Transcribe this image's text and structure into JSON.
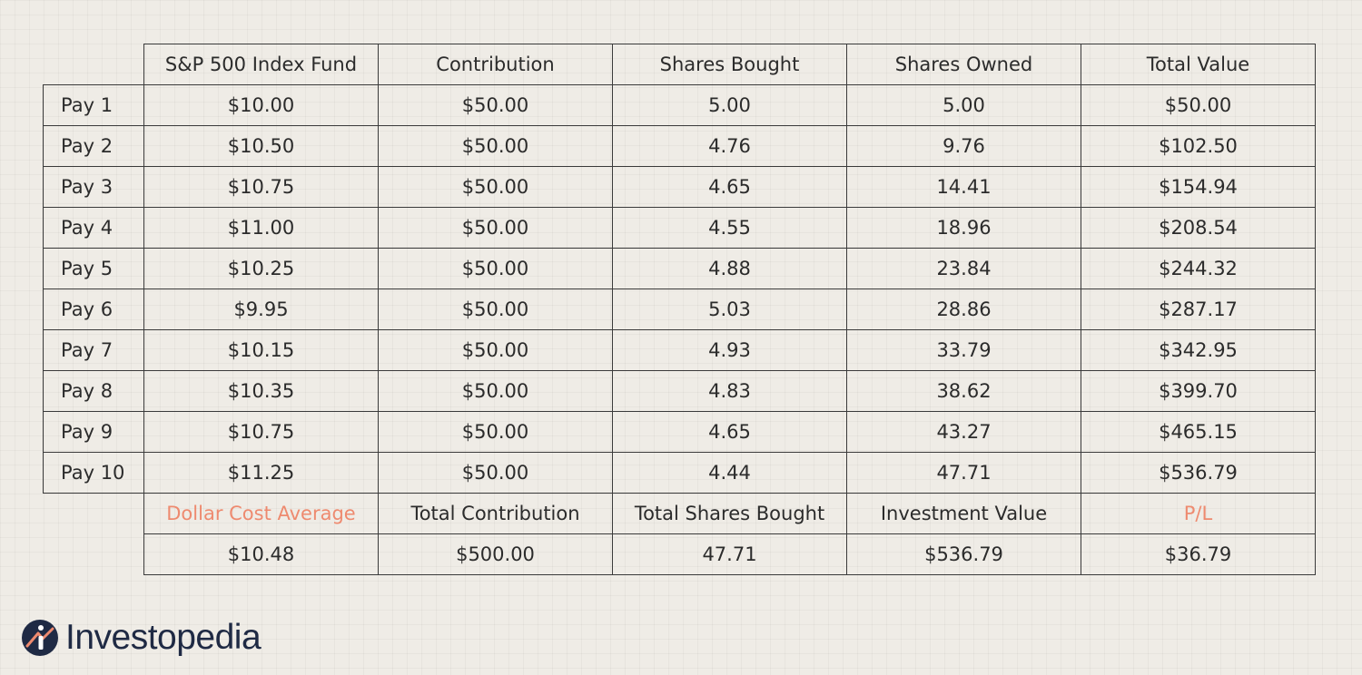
{
  "chart_data": {
    "type": "table",
    "columns": [
      "",
      "S&P 500 Index Fund",
      "Contribution",
      "Shares Bought",
      "Shares Owned",
      "Total Value"
    ],
    "rows": [
      [
        "Pay 1",
        "$10.00",
        "$50.00",
        "5.00",
        "5.00",
        "$50.00"
      ],
      [
        "Pay 2",
        "$10.50",
        "$50.00",
        "4.76",
        "9.76",
        "$102.50"
      ],
      [
        "Pay 3",
        "$10.75",
        "$50.00",
        "4.65",
        "14.41",
        "$154.94"
      ],
      [
        "Pay 4",
        "$11.00",
        "$50.00",
        "4.55",
        "18.96",
        "$208.54"
      ],
      [
        "Pay 5",
        "$10.25",
        "$50.00",
        "4.88",
        "23.84",
        "$244.32"
      ],
      [
        "Pay 6",
        "$9.95",
        "$50.00",
        "5.03",
        "28.86",
        "$287.17"
      ],
      [
        "Pay 7",
        "$10.15",
        "$50.00",
        "4.93",
        "33.79",
        "$342.95"
      ],
      [
        "Pay 8",
        "$10.35",
        "$50.00",
        "4.83",
        "38.62",
        "$399.70"
      ],
      [
        "Pay 9",
        "$10.75",
        "$50.00",
        "4.65",
        "43.27",
        "$465.15"
      ],
      [
        "Pay 10",
        "$11.25",
        "$50.00",
        "4.44",
        "47.71",
        "$536.79"
      ]
    ],
    "summary_labels": [
      "Dollar Cost Average",
      "Total Contribution",
      "Total Shares Bought",
      "Investment Value",
      "P/L"
    ],
    "summary_values": [
      "$10.48",
      "$500.00",
      "47.71",
      "$536.79",
      "$36.79"
    ],
    "accent_summary_labels": [
      "Dollar Cost Average",
      "P/L"
    ]
  },
  "colors": {
    "background": "#efece6",
    "text": "#2b2b2b",
    "border": "#3a3a3a",
    "accent": "#ee8a6f",
    "brand": "#1f2a44"
  },
  "brand": {
    "name": "Investopedia",
    "icon": "investopedia-logo-icon"
  }
}
